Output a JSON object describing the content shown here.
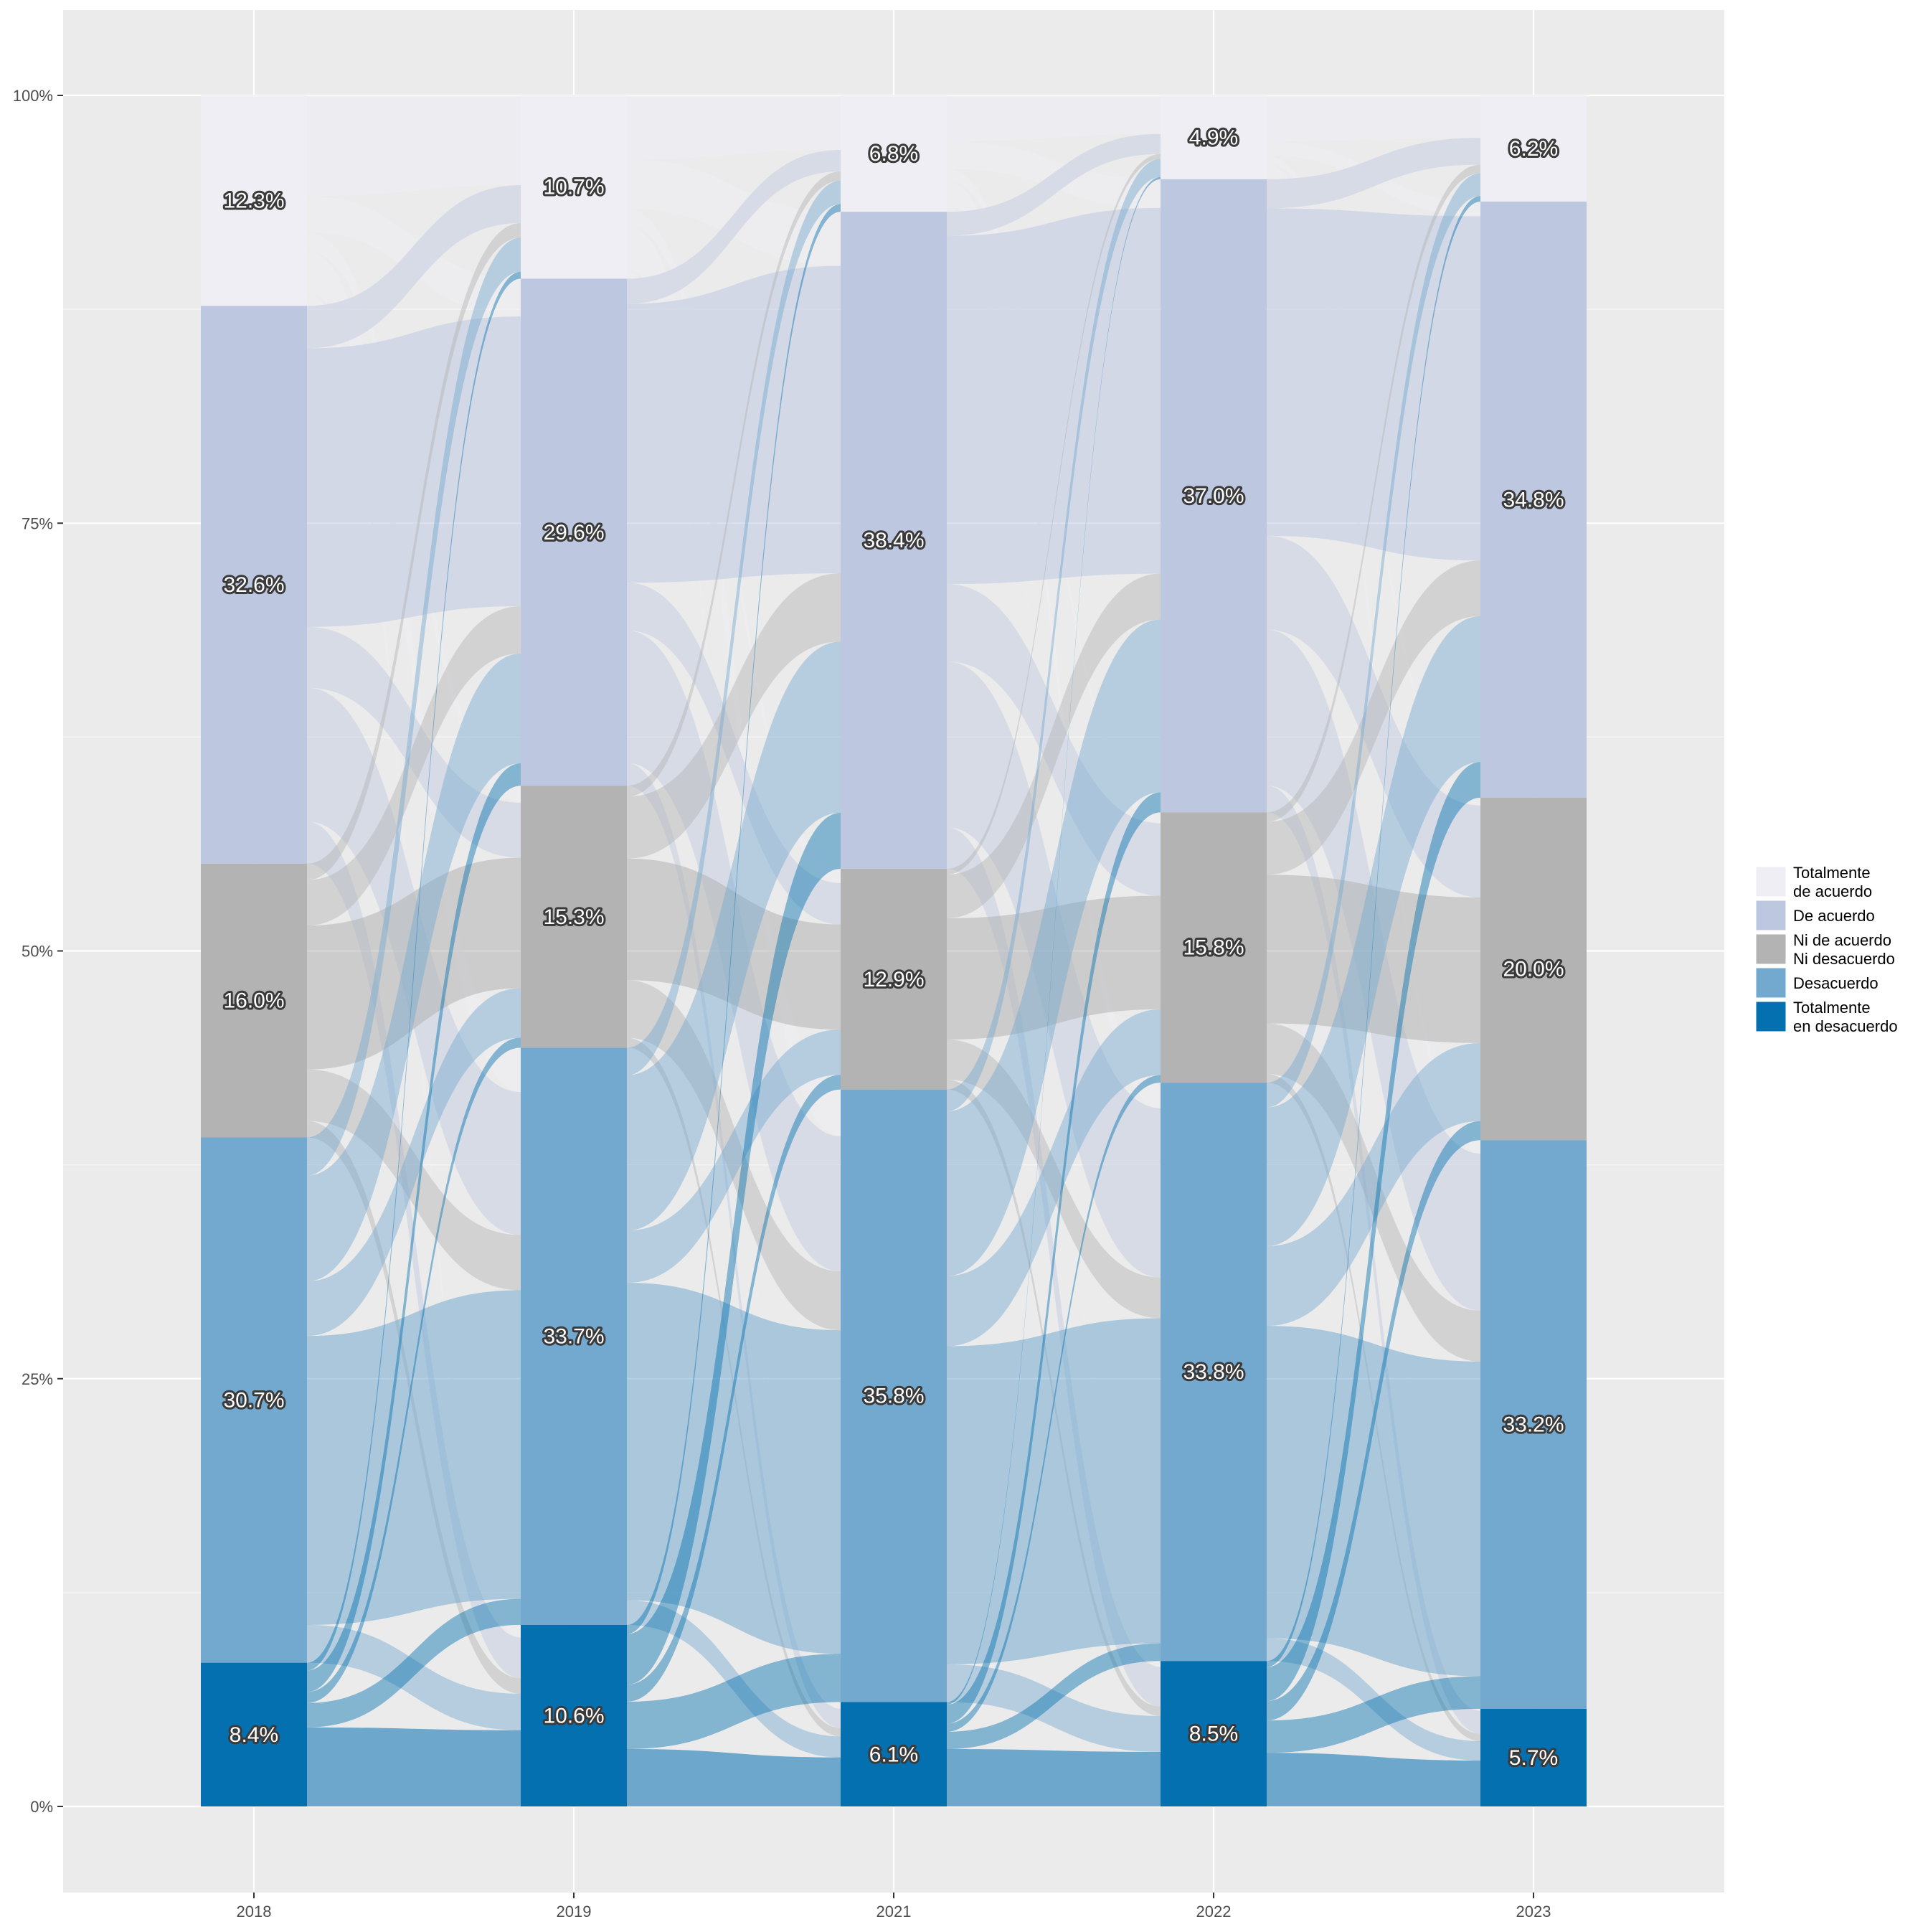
{
  "chart_data": {
    "type": "alluvial",
    "title": "",
    "xlabel": "",
    "ylabel": "",
    "categories": [
      "2018",
      "2019",
      "2021",
      "2022",
      "2023"
    ],
    "ylim": [
      0,
      1
    ],
    "y_ticks": [
      "0%",
      "25%",
      "50%",
      "75%",
      "100%"
    ],
    "grid": true,
    "legend_position": "right",
    "series": [
      {
        "name": "Totalmente de acuerdo",
        "legend_lines": [
          "Totalmente",
          "de acuerdo"
        ],
        "color": "#efeef5",
        "values": [
          12.3,
          10.7,
          6.8,
          4.9,
          6.2
        ],
        "labels": [
          "12.3%",
          "10.7%",
          "6.8%",
          "4.9%",
          "6.2%"
        ]
      },
      {
        "name": "De acuerdo",
        "legend_lines": [
          "De acuerdo"
        ],
        "color": "#bdc8e0",
        "values": [
          32.6,
          29.6,
          38.4,
          37.0,
          34.8
        ],
        "labels": [
          "32.6%",
          "29.6%",
          "38.4%",
          "37.0%",
          "34.8%"
        ]
      },
      {
        "name": "Ni de acuerdo Ni desacuerdo",
        "legend_lines": [
          "Ni de acuerdo",
          "Ni desacuerdo"
        ],
        "color": "#b3b3b3",
        "values": [
          16.0,
          15.3,
          12.9,
          15.8,
          20.0
        ],
        "labels": [
          "16.0%",
          "15.3%",
          "12.9%",
          "15.8%",
          "20.0%"
        ]
      },
      {
        "name": "Desacuerdo",
        "legend_lines": [
          "Desacuerdo"
        ],
        "color": "#74a9cf",
        "values": [
          30.7,
          33.7,
          35.8,
          33.8,
          33.2
        ],
        "labels": [
          "30.7%",
          "33.7%",
          "35.8%",
          "33.8%",
          "33.2%"
        ]
      },
      {
        "name": "Totalmente en desacuerdo",
        "legend_lines": [
          "Totalmente",
          "en desacuerdo"
        ],
        "color": "#0570b0",
        "values": [
          8.4,
          10.6,
          6.1,
          8.5,
          5.7
        ],
        "labels": [
          "8.4%",
          "10.6%",
          "6.1%",
          "8.5%",
          "5.7%"
        ]
      }
    ]
  }
}
